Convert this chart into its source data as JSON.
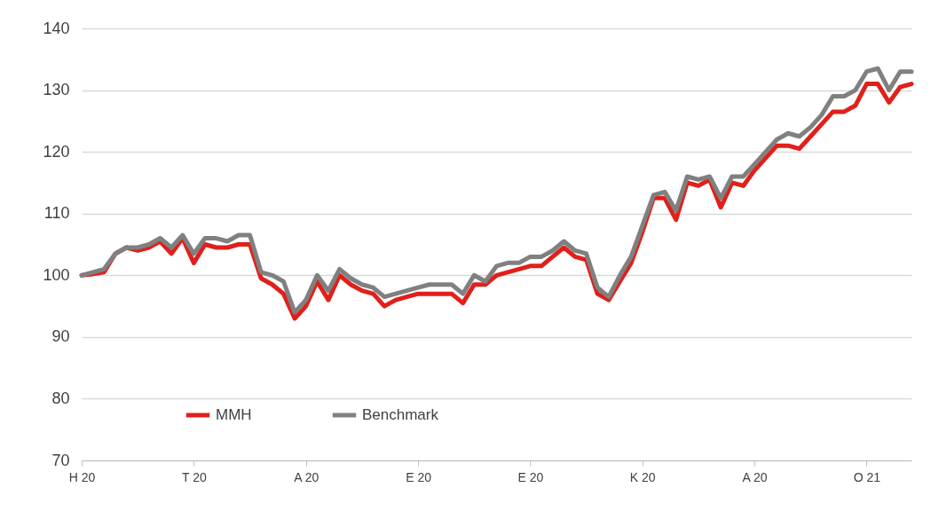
{
  "chart_data": {
    "type": "line",
    "categories": [
      "H 20",
      null,
      null,
      null,
      null,
      null,
      null,
      null,
      null,
      null,
      "T 20",
      null,
      null,
      null,
      null,
      null,
      null,
      null,
      null,
      null,
      "A 20",
      null,
      null,
      null,
      null,
      null,
      null,
      null,
      null,
      null,
      "E 20",
      null,
      null,
      null,
      null,
      null,
      null,
      null,
      null,
      null,
      "E 20",
      null,
      null,
      null,
      null,
      null,
      null,
      null,
      null,
      null,
      "K 20",
      null,
      null,
      null,
      null,
      null,
      null,
      null,
      null,
      null,
      "A 20",
      null,
      null,
      null,
      null,
      null,
      null,
      null,
      null,
      null,
      "O 21",
      null,
      null,
      null,
      null
    ],
    "ylim": [
      70,
      140
    ],
    "yticks": [
      70,
      80,
      90,
      100,
      110,
      120,
      130,
      140
    ],
    "grid": "y",
    "legend": "bottom left",
    "marker": "none",
    "line_style": "solid",
    "series": [
      {
        "name": "MMH",
        "color": "#e0201b",
        "values": [
          100,
          100.2,
          100.5,
          103.5,
          104.5,
          104,
          104.5,
          105.5,
          103.5,
          106,
          102,
          105,
          104.5,
          104.5,
          105,
          105,
          99.5,
          98.5,
          97,
          93,
          95,
          99,
          96,
          100,
          98.5,
          97.5,
          97,
          95,
          96,
          96.5,
          97,
          97,
          97,
          97,
          95.5,
          98.5,
          98.5,
          100,
          100.5,
          101,
          101.5,
          101.5,
          103,
          104.5,
          103,
          102.5,
          97,
          96,
          99,
          102,
          107,
          112.5,
          112.5,
          109,
          115,
          114.5,
          115.5,
          111,
          115,
          114.5,
          117,
          119,
          121,
          121,
          120.5,
          122.5,
          124.5,
          126.5,
          126.5,
          127.5,
          131,
          131,
          128,
          130.5,
          131
        ]
      },
      {
        "name": "Benchmark",
        "color": "#808080",
        "values": [
          100,
          100.5,
          101,
          103.5,
          104.5,
          104.5,
          105,
          106,
          104.5,
          106.5,
          103.5,
          106,
          106,
          105.5,
          106.5,
          106.5,
          100.5,
          100,
          99,
          94,
          96,
          100,
          97.5,
          101,
          99.5,
          98.5,
          98,
          96.5,
          97,
          97.5,
          98,
          98.5,
          98.5,
          98.5,
          97,
          100,
          99,
          101.5,
          102,
          102,
          103,
          103,
          104,
          105.5,
          104,
          103.5,
          98,
          96.5,
          100,
          103,
          108,
          113,
          113.5,
          110.5,
          116,
          115.5,
          116,
          112.5,
          116,
          116,
          118,
          120,
          122,
          123,
          122.5,
          124,
          126,
          129,
          129,
          130,
          133,
          133.5,
          130,
          133,
          133
        ]
      }
    ]
  }
}
